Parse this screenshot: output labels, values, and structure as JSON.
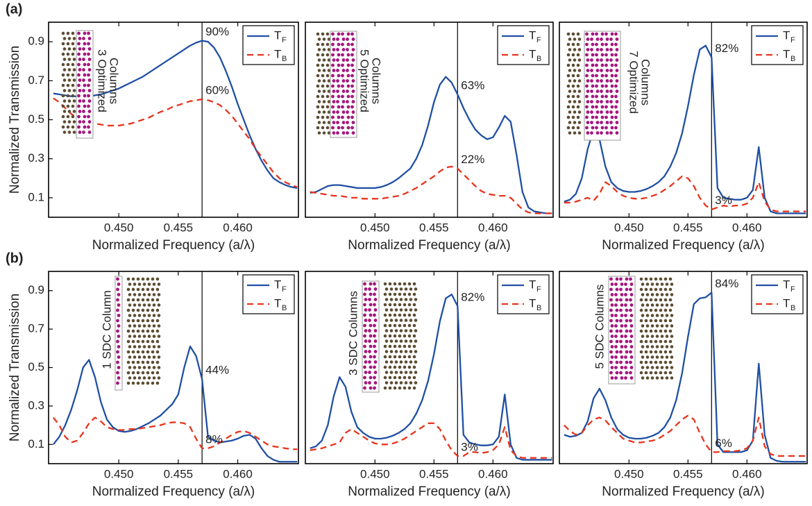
{
  "chart_data": [
    {
      "type": "line",
      "panel_label": "(a)",
      "inset_label": [
        "3 Optimized",
        "Columns"
      ],
      "xlabel": "Normalized Frequency (a/λ)",
      "ylabel": "Normalized Transmission",
      "x": [
        0.4445,
        0.445,
        0.4455,
        0.446,
        0.4465,
        0.447,
        0.4475,
        0.448,
        0.4485,
        0.449,
        0.4495,
        0.45,
        0.4505,
        0.451,
        0.4515,
        0.452,
        0.4525,
        0.453,
        0.4535,
        0.454,
        0.4545,
        0.455,
        0.4555,
        0.456,
        0.4565,
        0.457,
        0.4575,
        0.458,
        0.4585,
        0.459,
        0.4595,
        0.46,
        0.4605,
        0.461,
        0.4615,
        0.462,
        0.4625,
        0.463,
        0.4635,
        0.464,
        0.4645,
        0.465
      ],
      "xlim": [
        0.4441,
        0.4651
      ],
      "xticks": [
        {
          "value": 0.45,
          "label": "0.450"
        },
        {
          "value": 0.455,
          "label": "0.455"
        },
        {
          "value": 0.46,
          "label": "0.460"
        }
      ],
      "ylim": [
        0,
        1
      ],
      "yticks": [
        0.1,
        0.3,
        0.5,
        0.7,
        0.9
      ],
      "marker_x": 0.457,
      "legend": "upper right",
      "series": [
        {
          "name": "T",
          "name_sub": "F",
          "color": "#1f4fa3",
          "linestyle": "solid",
          "line_label": "90%",
          "values": [
            0.635,
            0.63,
            0.625,
            0.62,
            0.62,
            0.62,
            0.62,
            0.625,
            0.63,
            0.64,
            0.65,
            0.66,
            0.675,
            0.69,
            0.705,
            0.72,
            0.74,
            0.76,
            0.78,
            0.8,
            0.82,
            0.84,
            0.86,
            0.88,
            0.895,
            0.905,
            0.9,
            0.87,
            0.82,
            0.75,
            0.67,
            0.58,
            0.5,
            0.42,
            0.35,
            0.29,
            0.24,
            0.2,
            0.18,
            0.165,
            0.155,
            0.15
          ]
        },
        {
          "name": "T",
          "name_sub": "B",
          "color": "#e8331c",
          "linestyle": "dashed",
          "line_label": "60%",
          "values": [
            0.61,
            0.59,
            0.56,
            0.53,
            0.51,
            0.5,
            0.49,
            0.48,
            0.475,
            0.47,
            0.47,
            0.47,
            0.475,
            0.48,
            0.49,
            0.5,
            0.51,
            0.525,
            0.54,
            0.55,
            0.565,
            0.575,
            0.585,
            0.595,
            0.6,
            0.605,
            0.6,
            0.59,
            0.575,
            0.55,
            0.52,
            0.48,
            0.44,
            0.4,
            0.35,
            0.31,
            0.27,
            0.23,
            0.2,
            0.18,
            0.165,
            0.155
          ]
        }
      ]
    },
    {
      "type": "line",
      "inset_label": [
        "5 Optimized",
        "Columns"
      ],
      "xlabel": "Normalized Frequency (a/λ)",
      "x": [
        0.4445,
        0.445,
        0.4455,
        0.446,
        0.4465,
        0.447,
        0.4475,
        0.448,
        0.4485,
        0.449,
        0.4495,
        0.45,
        0.4505,
        0.451,
        0.4515,
        0.452,
        0.4525,
        0.453,
        0.4535,
        0.454,
        0.4545,
        0.455,
        0.4555,
        0.456,
        0.4565,
        0.457,
        0.4575,
        0.458,
        0.4585,
        0.459,
        0.4595,
        0.46,
        0.4605,
        0.461,
        0.4615,
        0.462,
        0.4625,
        0.463,
        0.4635,
        0.464,
        0.4645,
        0.465
      ],
      "xlim": [
        0.4441,
        0.4651
      ],
      "xticks": [
        {
          "value": 0.45,
          "label": "0.450"
        },
        {
          "value": 0.455,
          "label": "0.455"
        },
        {
          "value": 0.46,
          "label": "0.460"
        }
      ],
      "ylim": [
        0,
        1
      ],
      "marker_x": 0.457,
      "legend": "upper right",
      "series": [
        {
          "name": "T",
          "name_sub": "F",
          "color": "#1f4fa3",
          "linestyle": "solid",
          "line_label": "63%",
          "values": [
            0.125,
            0.13,
            0.145,
            0.16,
            0.165,
            0.165,
            0.16,
            0.155,
            0.15,
            0.15,
            0.15,
            0.15,
            0.155,
            0.165,
            0.18,
            0.2,
            0.225,
            0.25,
            0.3,
            0.37,
            0.47,
            0.59,
            0.68,
            0.72,
            0.69,
            0.63,
            0.56,
            0.5,
            0.45,
            0.42,
            0.4,
            0.41,
            0.46,
            0.52,
            0.49,
            0.32,
            0.13,
            0.05,
            0.03,
            0.025,
            0.02,
            0.02
          ]
        },
        {
          "name": "T",
          "name_sub": "B",
          "color": "#e8331c",
          "linestyle": "dashed",
          "line_label": "22%",
          "values": [
            0.13,
            0.125,
            0.12,
            0.115,
            0.11,
            0.11,
            0.105,
            0.1,
            0.1,
            0.095,
            0.095,
            0.095,
            0.095,
            0.1,
            0.105,
            0.11,
            0.12,
            0.135,
            0.15,
            0.17,
            0.19,
            0.21,
            0.235,
            0.255,
            0.26,
            0.25,
            0.22,
            0.19,
            0.16,
            0.135,
            0.12,
            0.115,
            0.11,
            0.11,
            0.1,
            0.07,
            0.04,
            0.025,
            0.02,
            0.02,
            0.02,
            0.02
          ]
        }
      ]
    },
    {
      "type": "line",
      "inset_label": [
        "7 Optimized",
        "Columns"
      ],
      "xlabel": "Normalized Frequency (a/λ)",
      "x": [
        0.4445,
        0.445,
        0.4455,
        0.446,
        0.4465,
        0.447,
        0.4475,
        0.448,
        0.4485,
        0.449,
        0.4495,
        0.45,
        0.4505,
        0.451,
        0.4515,
        0.452,
        0.4525,
        0.453,
        0.4535,
        0.454,
        0.4545,
        0.455,
        0.4555,
        0.456,
        0.4565,
        0.457,
        0.4575,
        0.458,
        0.4585,
        0.459,
        0.4595,
        0.46,
        0.4605,
        0.461,
        0.4615,
        0.462,
        0.4625,
        0.463,
        0.4635,
        0.464,
        0.4645,
        0.465
      ],
      "xlim": [
        0.4441,
        0.4651
      ],
      "xticks": [
        {
          "value": 0.45,
          "label": "0.450"
        },
        {
          "value": 0.455,
          "label": "0.455"
        },
        {
          "value": 0.46,
          "label": "0.460"
        }
      ],
      "ylim": [
        0,
        1
      ],
      "marker_x": 0.457,
      "legend": "upper right",
      "series": [
        {
          "name": "T",
          "name_sub": "F",
          "color": "#1f4fa3",
          "linestyle": "solid",
          "line_label": "82%",
          "values": [
            0.08,
            0.09,
            0.12,
            0.2,
            0.35,
            0.45,
            0.4,
            0.26,
            0.18,
            0.15,
            0.135,
            0.13,
            0.13,
            0.135,
            0.145,
            0.16,
            0.18,
            0.21,
            0.26,
            0.33,
            0.43,
            0.57,
            0.73,
            0.86,
            0.88,
            0.82,
            0.15,
            0.1,
            0.095,
            0.09,
            0.09,
            0.1,
            0.14,
            0.36,
            0.1,
            0.03,
            0.02,
            0.02,
            0.02,
            0.02,
            0.02,
            0.02
          ]
        },
        {
          "name": "T",
          "name_sub": "B",
          "color": "#e8331c",
          "linestyle": "dashed",
          "line_label": "3%",
          "values": [
            0.075,
            0.075,
            0.08,
            0.09,
            0.1,
            0.085,
            0.12,
            0.18,
            0.16,
            0.13,
            0.11,
            0.1,
            0.095,
            0.095,
            0.1,
            0.11,
            0.12,
            0.14,
            0.16,
            0.185,
            0.21,
            0.2,
            0.16,
            0.1,
            0.06,
            0.04,
            0.05,
            0.06,
            0.055,
            0.06,
            0.06,
            0.07,
            0.1,
            0.18,
            0.08,
            0.04,
            0.03,
            0.03,
            0.03,
            0.03,
            0.03,
            0.03
          ]
        }
      ]
    },
    {
      "type": "line",
      "panel_label": "(b)",
      "inset_label": [
        "1 SDC Column"
      ],
      "xlabel": "Normalized Frequency (a/λ)",
      "ylabel": "Normalized Transmission",
      "x": [
        0.4445,
        0.445,
        0.4455,
        0.446,
        0.4465,
        0.447,
        0.4475,
        0.448,
        0.4485,
        0.449,
        0.4495,
        0.45,
        0.4505,
        0.451,
        0.4515,
        0.452,
        0.4525,
        0.453,
        0.4535,
        0.454,
        0.4545,
        0.455,
        0.4555,
        0.456,
        0.4565,
        0.457,
        0.4575,
        0.458,
        0.4585,
        0.459,
        0.4595,
        0.46,
        0.4605,
        0.461,
        0.4615,
        0.462,
        0.4625,
        0.463,
        0.4635,
        0.464,
        0.4645,
        0.465
      ],
      "xlim": [
        0.4441,
        0.4651
      ],
      "xticks": [
        {
          "value": 0.45,
          "label": "0.450"
        },
        {
          "value": 0.455,
          "label": "0.455"
        },
        {
          "value": 0.46,
          "label": "0.460"
        }
      ],
      "ylim": [
        0,
        1
      ],
      "yticks": [
        0.1,
        0.3,
        0.5,
        0.7,
        0.9
      ],
      "marker_x": 0.457,
      "legend": "upper right",
      "series": [
        {
          "name": "T",
          "name_sub": "F",
          "color": "#1f4fa3",
          "linestyle": "solid",
          "line_label": "44%",
          "values": [
            0.1,
            0.14,
            0.2,
            0.28,
            0.38,
            0.5,
            0.54,
            0.45,
            0.32,
            0.23,
            0.19,
            0.17,
            0.165,
            0.17,
            0.18,
            0.195,
            0.21,
            0.23,
            0.25,
            0.28,
            0.31,
            0.36,
            0.5,
            0.61,
            0.56,
            0.44,
            0.14,
            0.12,
            0.11,
            0.115,
            0.12,
            0.13,
            0.145,
            0.15,
            0.13,
            0.08,
            0.04,
            0.02,
            0.01,
            0.01,
            0.01,
            0.01
          ]
        },
        {
          "name": "T",
          "name_sub": "B",
          "color": "#e8331c",
          "linestyle": "dashed",
          "line_label": "8%",
          "values": [
            0.24,
            0.2,
            0.14,
            0.11,
            0.12,
            0.16,
            0.21,
            0.24,
            0.22,
            0.19,
            0.18,
            0.175,
            0.175,
            0.18,
            0.18,
            0.185,
            0.19,
            0.195,
            0.2,
            0.21,
            0.215,
            0.215,
            0.21,
            0.19,
            0.13,
            0.08,
            0.08,
            0.09,
            0.11,
            0.13,
            0.15,
            0.165,
            0.17,
            0.16,
            0.14,
            0.12,
            0.1,
            0.09,
            0.085,
            0.08,
            0.075,
            0.075
          ]
        }
      ]
    },
    {
      "type": "line",
      "inset_label": [
        "3 SDC Columns"
      ],
      "xlabel": "Normalized Frequency (a/λ)",
      "x": [
        0.4445,
        0.445,
        0.4455,
        0.446,
        0.4465,
        0.447,
        0.4475,
        0.448,
        0.4485,
        0.449,
        0.4495,
        0.45,
        0.4505,
        0.451,
        0.4515,
        0.452,
        0.4525,
        0.453,
        0.4535,
        0.454,
        0.4545,
        0.455,
        0.4555,
        0.456,
        0.4565,
        0.457,
        0.4575,
        0.458,
        0.4585,
        0.459,
        0.4595,
        0.46,
        0.4605,
        0.461,
        0.4615,
        0.462,
        0.4625,
        0.463,
        0.4635,
        0.464,
        0.4645,
        0.465
      ],
      "xlim": [
        0.4441,
        0.4651
      ],
      "xticks": [
        {
          "value": 0.45,
          "label": "0.450"
        },
        {
          "value": 0.455,
          "label": "0.455"
        },
        {
          "value": 0.46,
          "label": "0.460"
        }
      ],
      "ylim": [
        0,
        1
      ],
      "marker_x": 0.457,
      "legend": "upper right",
      "series": [
        {
          "name": "T",
          "name_sub": "F",
          "color": "#1f4fa3",
          "linestyle": "solid",
          "line_label": "82%",
          "values": [
            0.08,
            0.09,
            0.12,
            0.2,
            0.35,
            0.45,
            0.4,
            0.27,
            0.19,
            0.16,
            0.14,
            0.13,
            0.13,
            0.135,
            0.145,
            0.16,
            0.18,
            0.21,
            0.26,
            0.33,
            0.43,
            0.57,
            0.74,
            0.86,
            0.88,
            0.82,
            0.15,
            0.11,
            0.1,
            0.095,
            0.095,
            0.1,
            0.14,
            0.36,
            0.1,
            0.03,
            0.02,
            0.02,
            0.02,
            0.02,
            0.02,
            0.02
          ]
        },
        {
          "name": "T",
          "name_sub": "B",
          "color": "#e8331c",
          "linestyle": "dashed",
          "line_label": "3%",
          "values": [
            0.07,
            0.075,
            0.08,
            0.09,
            0.1,
            0.11,
            0.16,
            0.18,
            0.16,
            0.14,
            0.12,
            0.105,
            0.1,
            0.1,
            0.105,
            0.115,
            0.13,
            0.15,
            0.17,
            0.19,
            0.21,
            0.21,
            0.18,
            0.12,
            0.07,
            0.04,
            0.04,
            0.06,
            0.06,
            0.055,
            0.06,
            0.07,
            0.1,
            0.19,
            0.07,
            0.04,
            0.03,
            0.03,
            0.03,
            0.03,
            0.03,
            0.03
          ]
        }
      ]
    },
    {
      "type": "line",
      "inset_label": [
        "5 SDC Columns"
      ],
      "xlabel": "Normalized Frequency (a/λ)",
      "x": [
        0.4445,
        0.445,
        0.4455,
        0.446,
        0.4465,
        0.447,
        0.4475,
        0.448,
        0.4485,
        0.449,
        0.4495,
        0.45,
        0.4505,
        0.451,
        0.4515,
        0.452,
        0.4525,
        0.453,
        0.4535,
        0.454,
        0.4545,
        0.455,
        0.4555,
        0.456,
        0.4565,
        0.457,
        0.4575,
        0.458,
        0.4585,
        0.459,
        0.4595,
        0.46,
        0.4605,
        0.461,
        0.4615,
        0.462,
        0.4625,
        0.463,
        0.4635,
        0.464,
        0.4645,
        0.465
      ],
      "xlim": [
        0.4441,
        0.4651
      ],
      "xticks": [
        {
          "value": 0.45,
          "label": "0.450"
        },
        {
          "value": 0.455,
          "label": "0.455"
        },
        {
          "value": 0.46,
          "label": "0.460"
        }
      ],
      "ylim": [
        0,
        1
      ],
      "marker_x": 0.457,
      "legend": "upper right",
      "series": [
        {
          "name": "T",
          "name_sub": "F",
          "color": "#1f4fa3",
          "linestyle": "solid",
          "line_label": "84%",
          "values": [
            0.15,
            0.14,
            0.145,
            0.16,
            0.22,
            0.34,
            0.39,
            0.33,
            0.24,
            0.18,
            0.15,
            0.135,
            0.13,
            0.13,
            0.135,
            0.145,
            0.16,
            0.19,
            0.24,
            0.33,
            0.47,
            0.66,
            0.83,
            0.86,
            0.865,
            0.89,
            0.1,
            0.06,
            0.06,
            0.06,
            0.06,
            0.07,
            0.12,
            0.52,
            0.15,
            0.03,
            0.015,
            0.01,
            0.01,
            0.01,
            0.01,
            0.01
          ]
        },
        {
          "name": "T",
          "name_sub": "B",
          "color": "#e8331c",
          "linestyle": "dashed",
          "line_label": "6%",
          "values": [
            0.2,
            0.17,
            0.15,
            0.16,
            0.2,
            0.23,
            0.24,
            0.225,
            0.19,
            0.16,
            0.13,
            0.12,
            0.11,
            0.11,
            0.115,
            0.12,
            0.13,
            0.15,
            0.17,
            0.2,
            0.23,
            0.25,
            0.23,
            0.16,
            0.1,
            0.06,
            0.06,
            0.065,
            0.065,
            0.065,
            0.07,
            0.08,
            0.12,
            0.24,
            0.09,
            0.05,
            0.04,
            0.04,
            0.04,
            0.04,
            0.04,
            0.04
          ]
        }
      ]
    }
  ]
}
